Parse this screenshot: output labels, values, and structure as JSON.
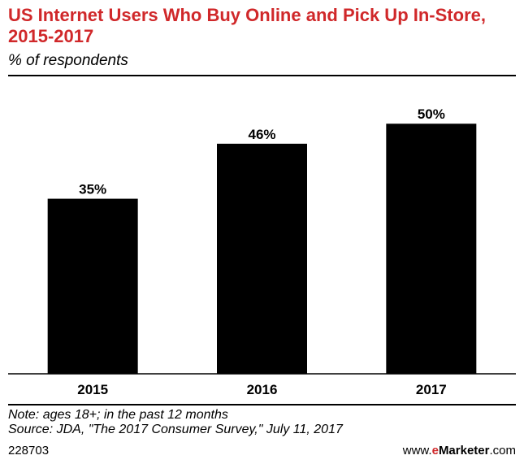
{
  "header": {
    "title": "US Internet Users Who Buy Online and Pick Up In-Store, 2015-2017",
    "subtitle": "% of respondents"
  },
  "chart_data": {
    "type": "bar",
    "title": "US Internet Users Who Buy Online and Pick Up In-Store, 2015-2017",
    "subtitle": "% of respondents",
    "categories": [
      "2015",
      "2016",
      "2017"
    ],
    "values": [
      35,
      46,
      50
    ],
    "value_labels": [
      "35%",
      "46%",
      "50%"
    ],
    "ylim": [
      0,
      58
    ],
    "grid": false,
    "bar_color": "#000000"
  },
  "notes": {
    "note": "Note: ages 18+; in the past 12 months",
    "source": "Source: JDA, \"The 2017 Consumer Survey,\" July 11, 2017"
  },
  "footer": {
    "id": "228703",
    "brand_prefix": "www.",
    "brand_accent": "e",
    "brand_name": "Marketer",
    "brand_suffix": ".com"
  },
  "colors": {
    "title": "#d0282a",
    "brand_accent": "#d0282a"
  }
}
